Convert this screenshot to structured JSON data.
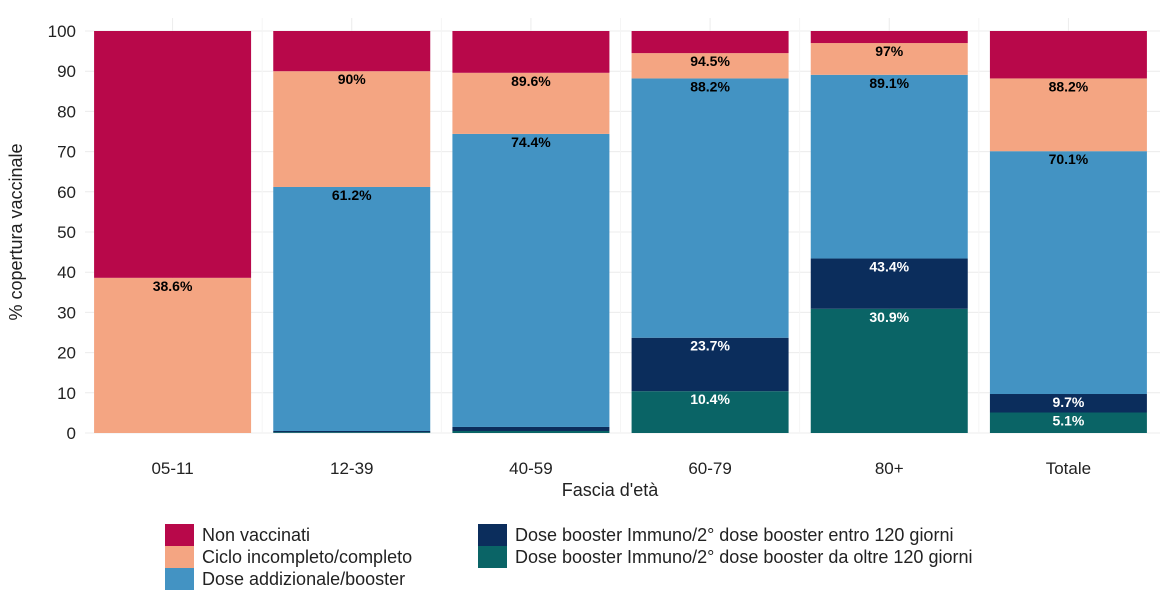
{
  "chart_data": {
    "type": "bar",
    "stacked": true,
    "categories": [
      "05-11",
      "12-39",
      "40-59",
      "60-79",
      "80+",
      "Totale"
    ],
    "xlabel": "Fascia d'età",
    "ylabel": "% copertura vaccinale",
    "ylim": [
      0,
      100
    ],
    "yticks": [
      0,
      10,
      20,
      30,
      40,
      50,
      60,
      70,
      80,
      90,
      100
    ],
    "grid": true,
    "legend_position": "bottom",
    "series": [
      {
        "name": "Dose booster Immuno/2° dose booster da oltre 120 giorni",
        "color": "#0a6466",
        "values": [
          0,
          0.2,
          0.5,
          10.4,
          30.9,
          5.1
        ]
      },
      {
        "name": "Dose booster Immuno/2° dose booster entro 120 giorni",
        "color": "#0b2d5c",
        "values": [
          0,
          0.3,
          1.0,
          13.3,
          12.5,
          4.6
        ]
      },
      {
        "name": "Dose addizionale/booster",
        "color": "#4393c3",
        "values": [
          0,
          60.7,
          72.9,
          64.5,
          45.7,
          60.4
        ]
      },
      {
        "name": "Ciclo incompleto/completo",
        "color": "#f4a582",
        "values": [
          38.6,
          28.8,
          15.2,
          6.3,
          7.9,
          18.1
        ]
      },
      {
        "name": "Non vaccinati",
        "color": "#b8084a",
        "values": [
          61.4,
          10.0,
          10.4,
          5.5,
          3.0,
          11.8
        ]
      }
    ],
    "data_labels": [
      {
        "category": "05-11",
        "value": 38.6,
        "text": "38.6%",
        "color": "#000000"
      },
      {
        "category": "12-39",
        "value": 61.2,
        "text": "61.2%",
        "color": "#000000"
      },
      {
        "category": "12-39",
        "value": 90,
        "text": "90%",
        "color": "#000000"
      },
      {
        "category": "40-59",
        "value": 74.4,
        "text": "74.4%",
        "color": "#000000"
      },
      {
        "category": "40-59",
        "value": 89.6,
        "text": "89.6%",
        "color": "#000000"
      },
      {
        "category": "60-79",
        "value": 10.4,
        "text": "10.4%",
        "color": "#ffffff"
      },
      {
        "category": "60-79",
        "value": 23.7,
        "text": "23.7%",
        "color": "#ffffff"
      },
      {
        "category": "60-79",
        "value": 88.2,
        "text": "88.2%",
        "color": "#000000"
      },
      {
        "category": "60-79",
        "value": 94.5,
        "text": "94.5%",
        "color": "#000000"
      },
      {
        "category": "80+",
        "value": 30.9,
        "text": "30.9%",
        "color": "#ffffff"
      },
      {
        "category": "80+",
        "value": 43.4,
        "text": "43.4%",
        "color": "#ffffff"
      },
      {
        "category": "80+",
        "value": 89.1,
        "text": "89.1%",
        "color": "#000000"
      },
      {
        "category": "80+",
        "value": 97,
        "text": "97%",
        "color": "#000000"
      },
      {
        "category": "Totale",
        "value": 5.1,
        "text": "5.1%",
        "color": "#ffffff"
      },
      {
        "category": "Totale",
        "value": 9.7,
        "text": "9.7%",
        "color": "#ffffff"
      },
      {
        "category": "Totale",
        "value": 70.1,
        "text": "70.1%",
        "color": "#000000"
      },
      {
        "category": "Totale",
        "value": 88.2,
        "text": "88.2%",
        "color": "#000000"
      }
    ],
    "legend": [
      {
        "name": "Non vaccinati",
        "color": "#b8084a"
      },
      {
        "name": "Ciclo incompleto/completo",
        "color": "#f4a582"
      },
      {
        "name": "Dose addizionale/booster",
        "color": "#4393c3"
      },
      {
        "name": "Dose booster Immuno/2° dose booster entro 120 giorni",
        "color": "#0b2d5c"
      },
      {
        "name": "Dose booster Immuno/2° dose booster da oltre 120 giorni",
        "color": "#0a6466"
      }
    ]
  }
}
